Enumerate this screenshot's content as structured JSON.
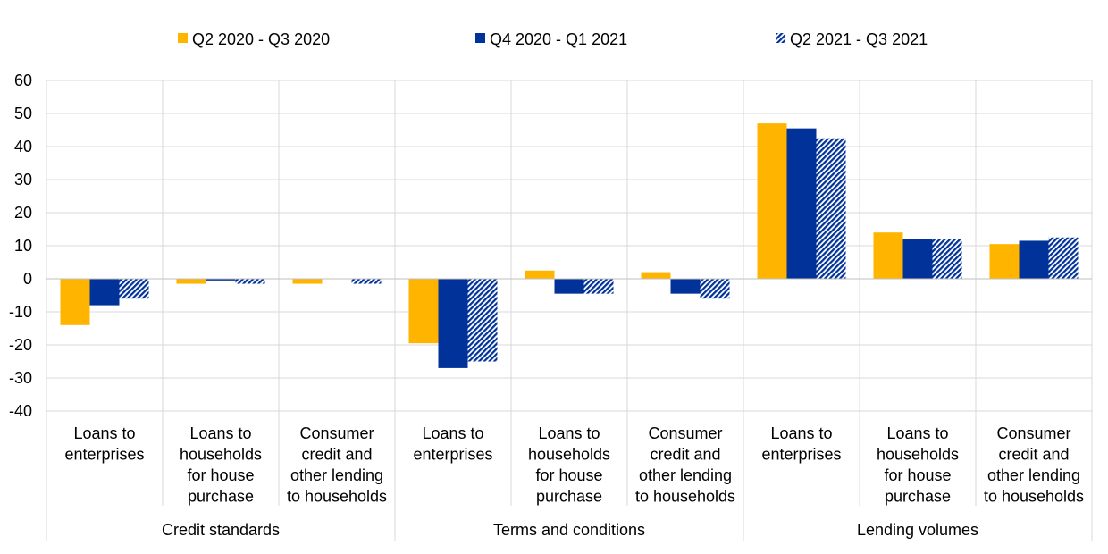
{
  "chart_data": {
    "type": "bar",
    "legend": {
      "position": "top",
      "entries": [
        {
          "label": "Q2 2020 - Q3 2020",
          "color": "#FFB400",
          "pattern": "solid"
        },
        {
          "label": "Q4 2020 - Q1 2021",
          "color": "#003299",
          "pattern": "solid"
        },
        {
          "label": "Q2 2021 - Q3 2021",
          "color": "#003299",
          "pattern": "diagonal-hatch"
        }
      ]
    },
    "groups": [
      {
        "label": "Credit standards",
        "categories": [
          {
            "lines": [
              "Loans to",
              "enterprises"
            ]
          },
          {
            "lines": [
              "Loans to",
              "households",
              "for house",
              "purchase"
            ]
          },
          {
            "lines": [
              "Consumer",
              "credit and",
              "other lending",
              "to households"
            ]
          }
        ]
      },
      {
        "label": "Terms and conditions",
        "categories": [
          {
            "lines": [
              "Loans to",
              "enterprises"
            ]
          },
          {
            "lines": [
              "Loans to",
              "households",
              "for house",
              "purchase"
            ]
          },
          {
            "lines": [
              "Consumer",
              "credit and",
              "other lending",
              "to households"
            ]
          }
        ]
      },
      {
        "label": "Lending volumes",
        "categories": [
          {
            "lines": [
              "Loans to",
              "enterprises"
            ]
          },
          {
            "lines": [
              "Loans to",
              "households",
              "for house",
              "purchase"
            ]
          },
          {
            "lines": [
              "Consumer",
              "credit and",
              "other lending",
              "to households"
            ]
          }
        ]
      }
    ],
    "series": [
      {
        "name": "Q2 2020 - Q3 2020",
        "values": [
          -14,
          -1.5,
          -1.5,
          -19.5,
          2.5,
          2,
          47,
          14,
          10.5
        ]
      },
      {
        "name": "Q4 2020 - Q1 2021",
        "values": [
          -8,
          -0.5,
          0,
          -27,
          -4.5,
          -4.5,
          45.5,
          12,
          11.5
        ]
      },
      {
        "name": "Q2 2021 - Q3 2021",
        "values": [
          -6,
          -1.5,
          -1.5,
          -25,
          -4.5,
          -6,
          42.5,
          12,
          12.5
        ]
      }
    ],
    "ylim": [
      -40,
      60
    ],
    "yticks": [
      -40,
      -30,
      -20,
      -10,
      0,
      10,
      20,
      30,
      40,
      50,
      60
    ],
    "grid": true
  }
}
